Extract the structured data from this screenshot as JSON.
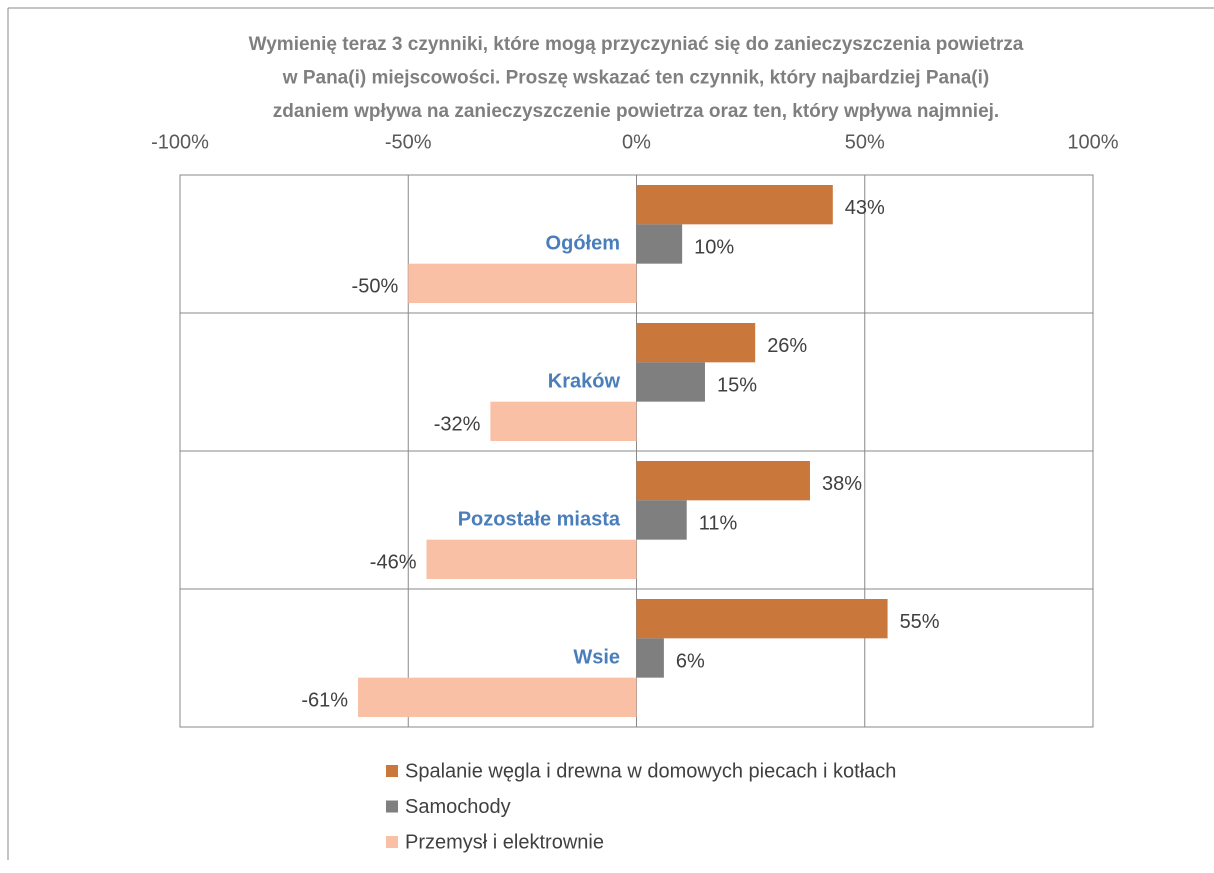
{
  "chart_data": {
    "type": "hbar",
    "title": [
      "Wymienię teraz 3 czynniki, które mogą przyczyniać się do zanieczyszczenia powietrza",
      "w Pana(i) miejscowości. Proszę wskazać ten czynnik, który najbardziej Pana(i)",
      "zdaniem wpływa na zanieczyszczenie powietrza oraz ten, który wpływa najmniej."
    ],
    "categories": [
      "Ogółem",
      "Kraków",
      "Pozostałe miasta",
      "Wsie"
    ],
    "series": [
      {
        "name": "Spalanie węgla i drewna w domowych piecach i kotłach",
        "color": "#c9773a",
        "values": [
          43,
          26,
          38,
          55
        ],
        "value_labels": [
          "43%",
          "26%",
          "38%",
          "55%"
        ]
      },
      {
        "name": "Samochody",
        "color": "#7f7f7f",
        "values": [
          10,
          15,
          11,
          6
        ],
        "value_labels": [
          "10%",
          "15%",
          "11%",
          "6%"
        ]
      },
      {
        "name": "Przemysł i elektrownie",
        "color": "#fac0a5",
        "values": [
          -50,
          -32,
          -46,
          -61
        ],
        "value_labels": [
          "-50%",
          "-32%",
          "-46%",
          "-61%"
        ]
      }
    ],
    "xlim": [
      -100,
      100
    ],
    "xticks": [
      {
        "value": -100,
        "label": "-100%"
      },
      {
        "value": -50,
        "label": "-50%"
      },
      {
        "value": 0,
        "label": "0%"
      },
      {
        "value": 50,
        "label": "50%"
      },
      {
        "value": 100,
        "label": "100%"
      }
    ],
    "grid": true
  }
}
